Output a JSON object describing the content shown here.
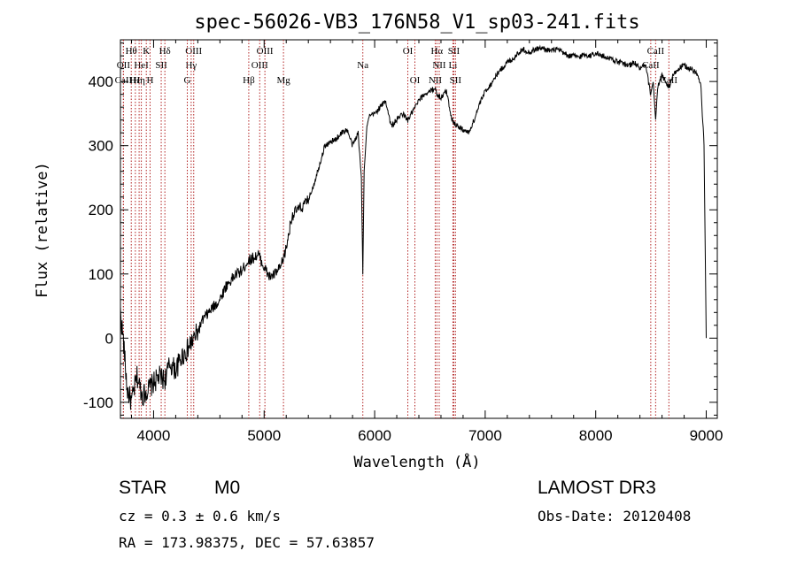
{
  "chart_data": {
    "type": "line",
    "title": "spec-56026-VB3_176N58_V1_sp03-241.fits",
    "xlabel": "Wavelength (Å)",
    "ylabel": "Flux (relative)",
    "xlim": [
      3700,
      9100
    ],
    "ylim": [
      -125,
      465
    ],
    "xticks": [
      4000,
      5000,
      6000,
      7000,
      8000,
      9000
    ],
    "yticks": [
      -100,
      0,
      100,
      200,
      300,
      400
    ],
    "series": [
      {
        "name": "flux",
        "x": [
          3700,
          3730,
          3760,
          3800,
          3850,
          3900,
          3950,
          4000,
          4050,
          4100,
          4150,
          4200,
          4250,
          4300,
          4350,
          4400,
          4450,
          4500,
          4550,
          4600,
          4650,
          4700,
          4750,
          4800,
          4850,
          4900,
          4950,
          5000,
          5050,
          5100,
          5150,
          5200,
          5250,
          5300,
          5350,
          5400,
          5450,
          5500,
          5550,
          5600,
          5650,
          5700,
          5750,
          5800,
          5850,
          5880,
          5893,
          5905,
          5930,
          5950,
          6000,
          6050,
          6100,
          6150,
          6200,
          6250,
          6300,
          6350,
          6400,
          6450,
          6500,
          6550,
          6563,
          6600,
          6650,
          6700,
          6750,
          6800,
          6850,
          6900,
          6950,
          7000,
          7050,
          7100,
          7150,
          7200,
          7250,
          7300,
          7350,
          7400,
          7450,
          7500,
          7550,
          7600,
          7650,
          7700,
          7750,
          7800,
          7850,
          7900,
          7950,
          8000,
          8050,
          8100,
          8150,
          8200,
          8250,
          8300,
          8350,
          8400,
          8450,
          8498,
          8520,
          8542,
          8560,
          8600,
          8662,
          8700,
          8750,
          8800,
          8850,
          8900,
          8950,
          8980,
          9000
        ],
        "y": [
          40,
          -10,
          -80,
          -100,
          -60,
          -90,
          -80,
          -70,
          -60,
          -65,
          -40,
          -50,
          -30,
          -20,
          -5,
          10,
          30,
          40,
          50,
          60,
          80,
          90,
          100,
          105,
          120,
          125,
          130,
          110,
          95,
          100,
          110,
          140,
          190,
          200,
          205,
          215,
          240,
          270,
          300,
          305,
          310,
          320,
          325,
          300,
          320,
          250,
          100,
          260,
          330,
          345,
          350,
          360,
          370,
          330,
          340,
          350,
          340,
          355,
          370,
          380,
          385,
          390,
          380,
          375,
          385,
          340,
          330,
          325,
          320,
          340,
          365,
          385,
          395,
          410,
          420,
          430,
          435,
          445,
          450,
          445,
          450,
          452,
          450,
          448,
          450,
          445,
          440,
          440,
          438,
          442,
          440,
          445,
          440,
          438,
          435,
          430,
          428,
          425,
          430,
          420,
          425,
          380,
          400,
          340,
          390,
          410,
          390,
          410,
          420,
          425,
          420,
          415,
          400,
          300,
          0
        ]
      }
    ],
    "lines": [
      {
        "name": "Hθ",
        "wl": 3798,
        "row": 1
      },
      {
        "name": "OII",
        "wl": 3727,
        "row": 2
      },
      {
        "name": "CaII",
        "wl": 3727,
        "row": 3
      },
      {
        "name": "Hε",
        "wl": 3835,
        "row": 3
      },
      {
        "name": "HeI",
        "wl": 3889,
        "row": 2
      },
      {
        "name": "K",
        "wl": 3934,
        "row": 1
      },
      {
        "name": "Hη",
        "wl": 3869,
        "row": 3
      },
      {
        "name": "SII",
        "wl": 4069,
        "row": 2
      },
      {
        "name": "H",
        "wl": 3968,
        "row": 3
      },
      {
        "name": "Hδ",
        "wl": 4102,
        "row": 1
      },
      {
        "name": "OIII",
        "wl": 4363,
        "row": 1
      },
      {
        "name": "Hγ",
        "wl": 4340,
        "row": 2
      },
      {
        "name": "G",
        "wl": 4305,
        "row": 3
      },
      {
        "name": "OIII",
        "wl": 5007,
        "row": 1
      },
      {
        "name": "OIII",
        "wl": 4960,
        "row": 2
      },
      {
        "name": "Hβ",
        "wl": 4861,
        "row": 3
      },
      {
        "name": "Mg",
        "wl": 5175,
        "row": 3
      },
      {
        "name": "Na",
        "wl": 5893,
        "row": 2
      },
      {
        "name": "OI",
        "wl": 6300,
        "row": 1
      },
      {
        "name": "OI",
        "wl": 6364,
        "row": 3
      },
      {
        "name": "Hα",
        "wl": 6563,
        "row": 1
      },
      {
        "name": "SII",
        "wl": 6716,
        "row": 1
      },
      {
        "name": "NII",
        "wl": 6584,
        "row": 2
      },
      {
        "name": "Li",
        "wl": 6708,
        "row": 2
      },
      {
        "name": "NII",
        "wl": 6548,
        "row": 3
      },
      {
        "name": "SII",
        "wl": 6731,
        "row": 3
      },
      {
        "name": "CaII",
        "wl": 8542,
        "row": 1
      },
      {
        "name": "CaII",
        "wl": 8498,
        "row": 2
      },
      {
        "name": "CaII",
        "wl": 8662,
        "row": 3
      }
    ]
  },
  "info": {
    "object_class": "STAR",
    "subclass": "M0",
    "survey": "LAMOST DR3",
    "redshift": "cz = 0.3 ± 0.6 km/s",
    "obs_date": "Obs-Date: 20120408",
    "coords": "RA = 173.98375, DEC =  57.63857"
  },
  "colors": {
    "line_marker": "#b22222",
    "spectrum": "#000000"
  }
}
